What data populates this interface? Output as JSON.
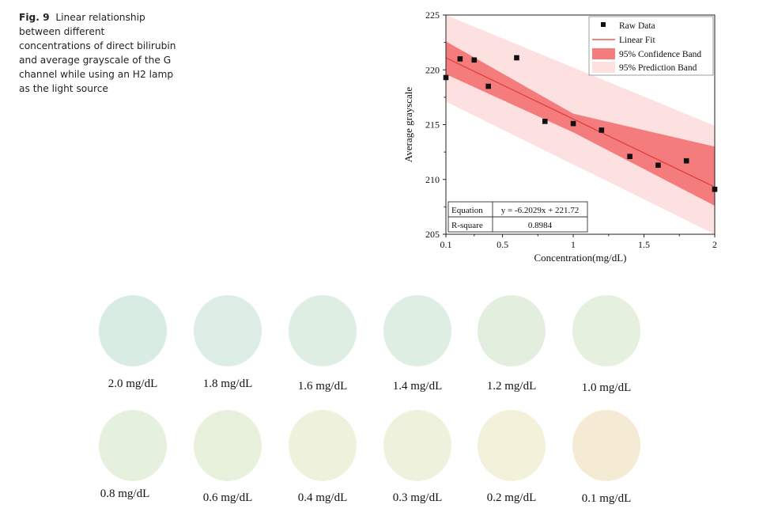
{
  "caption": {
    "fig_label": "Fig. 9",
    "text": "Linear relationship between different concentrations of direct bilirubin and average grayscale of the G channel while using an H2 lamp as the light source"
  },
  "chart_data": {
    "type": "scatter",
    "xlabel": "Concentration(mg/dL)",
    "ylabel": "Average grayscale",
    "xlim": [
      0.1,
      2
    ],
    "ylim": [
      205,
      225
    ],
    "xticks": [
      0.1,
      0.5,
      1,
      1.5,
      2
    ],
    "xtick_labels": [
      "0.1",
      "0.5",
      "1",
      "1.5",
      "2"
    ],
    "yticks": [
      205,
      210,
      215,
      220,
      225
    ],
    "ytick_labels": [
      "205",
      "210",
      "215",
      "220",
      "225"
    ],
    "grid": false,
    "legend_position": "top-right",
    "legend": {
      "raw": "Raw Data",
      "fit": "Linear Fit",
      "conf": "95% Confidence Band",
      "pred": "95% Prediction Band"
    },
    "series": [
      {
        "name": "Raw Data",
        "x": [
          0.1,
          0.2,
          0.3,
          0.4,
          0.6,
          0.8,
          1.0,
          1.2,
          1.4,
          1.6,
          1.8,
          2.0
        ],
        "y": [
          219.3,
          221.0,
          220.9,
          218.5,
          221.1,
          215.3,
          215.1,
          214.5,
          212.1,
          211.3,
          211.7,
          209.1
        ]
      }
    ],
    "fit": {
      "slope": -6.2029,
      "intercept": 221.72
    },
    "confidence_band": {
      "x": [
        0.1,
        1.0,
        2.0
      ],
      "lower": [
        219.6,
        214.3,
        207.6
      ],
      "upper": [
        222.6,
        216.0,
        213.0
      ]
    },
    "prediction_band": {
      "x": [
        0.1,
        2.0
      ],
      "lower": [
        217.1,
        205.0
      ],
      "upper": [
        225.0,
        214.9
      ]
    },
    "stats_table": {
      "equation_label": "Equation",
      "equation_value": "y = -6.2029x + 221.72",
      "r2_label": "R-square",
      "r2_value": "0.8984"
    },
    "colors": {
      "marker": "#111111",
      "fit_line": "#e03a3a",
      "conf_band": "#f47c7c",
      "pred_band": "#fde0e0"
    }
  },
  "swatches": [
    {
      "label": "2.0 mg/dL",
      "color": "#d9ece4"
    },
    {
      "label": "1.8 mg/dL",
      "color": "#dcede5"
    },
    {
      "label": "1.6 mg/dL",
      "color": "#deeee3"
    },
    {
      "label": "1.4 mg/dL",
      "color": "#dfeee2"
    },
    {
      "label": "1.2 mg/dL",
      "color": "#e3efde"
    },
    {
      "label": "1.0 mg/dL",
      "color": "#e6f0df"
    },
    {
      "label": "0.8 mg/dL",
      "color": "#e5f0df"
    },
    {
      "label": "0.6 mg/dL",
      "color": "#e7f1dc"
    },
    {
      "label": "0.4 mg/dL",
      "color": "#eef2dc"
    },
    {
      "label": "0.3 mg/dL",
      "color": "#eef2dc"
    },
    {
      "label": "0.2 mg/dL",
      "color": "#f4f1da"
    },
    {
      "label": "0.1 mg/dL",
      "color": "#f5ebd5"
    }
  ]
}
